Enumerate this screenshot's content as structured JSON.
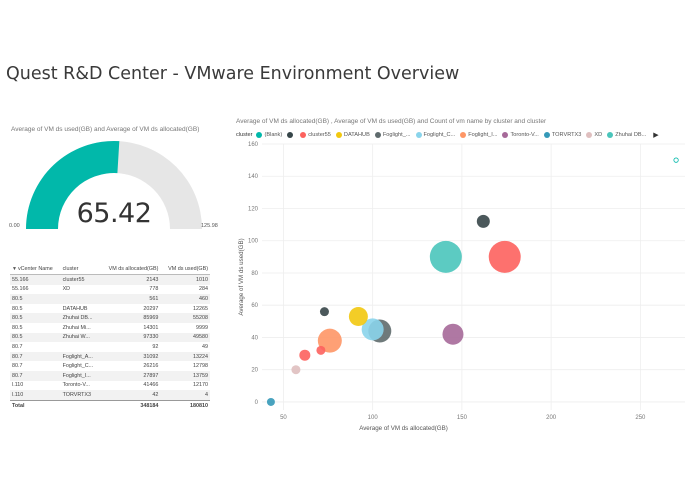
{
  "page": {
    "title": "Quest R&D Center - VMware Environment Overview"
  },
  "gauge": {
    "title": "Average of  VM ds used(GB)  and Average of  VM ds allocated(GB)",
    "value": "65.42",
    "min": "0.00",
    "max": "125.98",
    "numeric_value": 65.42,
    "numeric_min": 0,
    "numeric_max": 125.98,
    "fill_color": "#01b8aa",
    "track_color": "#e6e6e6"
  },
  "table": {
    "headers": [
      "vCenter Name",
      "cluster",
      "VM ds allocated(GB)",
      "VM ds used(GB)"
    ],
    "rows": [
      [
        "55.166",
        "cluster55",
        "2143",
        "1010"
      ],
      [
        "55.166",
        "XD",
        "778",
        "284"
      ],
      [
        "80.5",
        "",
        "561",
        "460"
      ],
      [
        "80.5",
        "DATAHUB",
        "20297",
        "12265"
      ],
      [
        "80.5",
        "Zhuhai DB...",
        "85969",
        "55208"
      ],
      [
        "80.5",
        "Zhuhai Mi...",
        "14301",
        "9999"
      ],
      [
        "80.5",
        "Zhuhai W...",
        "97330",
        "49580"
      ],
      [
        "80.7",
        "",
        "92",
        "49"
      ],
      [
        "80.7",
        "Foglight_A...",
        "31092",
        "13224"
      ],
      [
        "80.7",
        "Foglight_C...",
        "26216",
        "12798"
      ],
      [
        "80.7",
        "Foglight_I...",
        "27897",
        "13759"
      ],
      [
        "l.110",
        "Toronto-V...",
        "41466",
        "12170"
      ],
      [
        "l.110",
        "TORVRTX3",
        "42",
        "4"
      ]
    ],
    "total": [
      "Total",
      "",
      "348184",
      "180810"
    ]
  },
  "scatter": {
    "title": "Average of  VM ds allocated(GB) , Average of  VM ds used(GB)  and Count of  vm name  by cluster and cluster",
    "legend_title": "cluster",
    "legend": [
      {
        "label": "(Blank)",
        "color": "#01b8aa"
      },
      {
        "label": "",
        "color": "#374649"
      },
      {
        "label": "cluster55",
        "color": "#fd625e"
      },
      {
        "label": "DATAHUB",
        "color": "#f2c80f"
      },
      {
        "label": "Foglight_...",
        "color": "#5f6b6d"
      },
      {
        "label": "Foglight_C...",
        "color": "#8ad4eb"
      },
      {
        "label": "Foglight_I...",
        "color": "#fe9666"
      },
      {
        "label": "Toronto-V...",
        "color": "#a66999"
      },
      {
        "label": "TORVRTX3",
        "color": "#3599b8"
      },
      {
        "label": "XD",
        "color": "#dfbfbf"
      },
      {
        "label": "Zhuhai DB...",
        "color": "#4ac5bb"
      }
    ],
    "legend_more_icon": "chevron-right-icon"
  },
  "chart_data": {
    "type": "scatter",
    "title": "Average of  VM ds allocated(GB) , Average of  VM ds used(GB)  and Count of  vm name  by cluster and cluster",
    "xlabel": "Average of VM ds allocated(GB)",
    "ylabel": "Average of VM ds used(GB)",
    "xlim": [
      38,
      275
    ],
    "ylim": [
      -5,
      160
    ],
    "xticks": [
      50,
      100,
      150,
      200,
      250
    ],
    "yticks": [
      0,
      20,
      40,
      60,
      80,
      100,
      120,
      140,
      160
    ],
    "grid": true,
    "legend": "top",
    "points": [
      {
        "x": 141,
        "y": 90,
        "size": 16,
        "color": "#4ac5bb"
      },
      {
        "x": 174,
        "y": 90,
        "size": 16,
        "color": "#fd625e"
      },
      {
        "x": 162,
        "y": 112,
        "size": 6.5,
        "color": "#374649"
      },
      {
        "x": 145,
        "y": 42,
        "size": 10.5,
        "color": "#a66999"
      },
      {
        "x": 104,
        "y": 44,
        "size": 11.5,
        "color": "#5f6b6d"
      },
      {
        "x": 100,
        "y": 45,
        "size": 11,
        "color": "#8ad4eb"
      },
      {
        "x": 92,
        "y": 53,
        "size": 9.5,
        "color": "#f2c80f"
      },
      {
        "x": 76,
        "y": 38,
        "size": 12,
        "color": "#fe9666"
      },
      {
        "x": 73,
        "y": 56,
        "size": 4.5,
        "color": "#374649"
      },
      {
        "x": 71,
        "y": 32,
        "size": 4.5,
        "color": "#fd625e"
      },
      {
        "x": 62,
        "y": 29,
        "size": 5.5,
        "color": "#fd625e"
      },
      {
        "x": 57,
        "y": 20,
        "size": 4.5,
        "color": "#dfbfbf"
      },
      {
        "x": 43,
        "y": 0,
        "size": 4,
        "color": "#3599b8"
      },
      {
        "x": 270,
        "y": 150,
        "size": 2.2,
        "color": "#01b8aa",
        "hollow": true
      }
    ]
  }
}
